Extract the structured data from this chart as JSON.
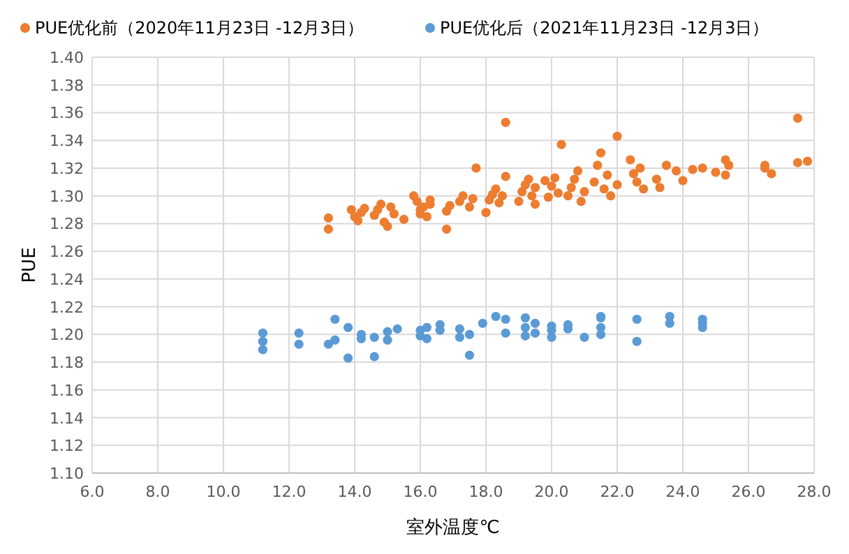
{
  "chart_data": {
    "type": "scatter",
    "xlabel": "室外温度℃",
    "ylabel": "PUE",
    "legend": "top",
    "grid": true,
    "marker": "circle",
    "xlim": [
      6,
      28
    ],
    "xticks": [
      {
        "value": 6,
        "label": "6.0"
      },
      {
        "value": 8,
        "label": "8.0"
      },
      {
        "value": 10,
        "label": "10.0"
      },
      {
        "value": 12,
        "label": "12.0"
      },
      {
        "value": 14,
        "label": "14.0"
      },
      {
        "value": 16,
        "label": "16.0"
      },
      {
        "value": 18,
        "label": "18.0"
      },
      {
        "value": 20,
        "label": "20.0"
      },
      {
        "value": 22,
        "label": "22.0"
      },
      {
        "value": 24,
        "label": "24.0"
      },
      {
        "value": 26,
        "label": "26.0"
      },
      {
        "value": 28,
        "label": "28.0"
      }
    ],
    "ylim": [
      1.1,
      1.4
    ],
    "yticks": [
      {
        "value": 1.1,
        "label": "1.10"
      },
      {
        "value": 1.12,
        "label": "1.12"
      },
      {
        "value": 1.14,
        "label": "1.14"
      },
      {
        "value": 1.16,
        "label": "1.16"
      },
      {
        "value": 1.18,
        "label": "1.18"
      },
      {
        "value": 1.2,
        "label": "1.20"
      },
      {
        "value": 1.22,
        "label": "1.22"
      },
      {
        "value": 1.24,
        "label": "1.24"
      },
      {
        "value": 1.26,
        "label": "1.26"
      },
      {
        "value": 1.28,
        "label": "1.28"
      },
      {
        "value": 1.3,
        "label": "1.30"
      },
      {
        "value": 1.32,
        "label": "1.32"
      },
      {
        "value": 1.34,
        "label": "1.34"
      },
      {
        "value": 1.36,
        "label": "1.36"
      },
      {
        "value": 1.38,
        "label": "1.38"
      },
      {
        "value": 1.4,
        "label": "1.40"
      }
    ],
    "series": [
      {
        "name": "PUE优化前（2020年11月23日 -12月3日）",
        "color": "#ed7d31",
        "x": [
          13.2,
          13.2,
          13.9,
          14.0,
          14.1,
          14.2,
          14.3,
          14.6,
          14.7,
          14.8,
          14.9,
          15.0,
          15.1,
          15.2,
          15.5,
          15.8,
          15.9,
          16.0,
          16.0,
          16.1,
          16.2,
          16.3,
          16.3,
          16.8,
          16.8,
          16.9,
          17.2,
          17.3,
          17.5,
          17.6,
          17.7,
          18.0,
          18.1,
          18.2,
          18.3,
          18.4,
          18.5,
          18.6,
          18.6,
          19.0,
          19.1,
          19.2,
          19.3,
          19.4,
          19.5,
          19.5,
          19.8,
          19.9,
          20.0,
          20.1,
          20.2,
          20.3,
          20.5,
          20.6,
          20.7,
          20.8,
          20.9,
          21.0,
          21.3,
          21.4,
          21.5,
          21.6,
          21.7,
          21.8,
          22.0,
          22.0,
          22.4,
          22.5,
          22.6,
          22.7,
          22.8,
          23.2,
          23.3,
          23.5,
          23.8,
          24.0,
          24.3,
          24.6,
          25.0,
          25.3,
          25.3,
          25.4,
          26.5,
          26.5,
          26.7,
          27.5,
          27.5,
          27.8
        ],
        "values": [
          1.284,
          1.276,
          1.29,
          1.285,
          1.282,
          1.288,
          1.291,
          1.286,
          1.29,
          1.294,
          1.281,
          1.278,
          1.292,
          1.287,
          1.283,
          1.3,
          1.296,
          1.29,
          1.287,
          1.292,
          1.285,
          1.294,
          1.297,
          1.276,
          1.289,
          1.293,
          1.296,
          1.3,
          1.292,
          1.298,
          1.32,
          1.288,
          1.297,
          1.301,
          1.305,
          1.295,
          1.3,
          1.353,
          1.314,
          1.296,
          1.303,
          1.308,
          1.312,
          1.3,
          1.294,
          1.306,
          1.311,
          1.299,
          1.307,
          1.313,
          1.302,
          1.337,
          1.3,
          1.306,
          1.312,
          1.318,
          1.296,
          1.303,
          1.31,
          1.322,
          1.331,
          1.305,
          1.315,
          1.3,
          1.343,
          1.308,
          1.326,
          1.316,
          1.31,
          1.32,
          1.305,
          1.312,
          1.306,
          1.322,
          1.318,
          1.311,
          1.319,
          1.32,
          1.317,
          1.326,
          1.315,
          1.322,
          1.322,
          1.32,
          1.316,
          1.356,
          1.324,
          1.325
        ]
      },
      {
        "name": "PUE优化后（2021年11月23日 -12月3日）",
        "color": "#5b9bd5",
        "x": [
          11.2,
          11.2,
          11.2,
          12.3,
          12.3,
          13.2,
          13.4,
          13.4,
          13.8,
          13.8,
          14.2,
          14.2,
          14.6,
          14.6,
          15.0,
          15.0,
          15.3,
          16.0,
          16.0,
          16.2,
          16.2,
          16.6,
          16.6,
          17.2,
          17.2,
          17.5,
          17.5,
          17.9,
          18.3,
          18.6,
          18.6,
          19.2,
          19.2,
          19.2,
          19.5,
          19.5,
          20.0,
          20.0,
          20.0,
          20.5,
          20.5,
          21.0,
          21.5,
          21.5,
          21.5,
          21.5,
          22.6,
          22.6,
          23.6,
          23.6,
          24.6,
          24.6,
          24.6
        ],
        "values": [
          1.201,
          1.195,
          1.189,
          1.193,
          1.201,
          1.193,
          1.211,
          1.196,
          1.183,
          1.205,
          1.197,
          1.2,
          1.184,
          1.198,
          1.202,
          1.196,
          1.204,
          1.203,
          1.199,
          1.205,
          1.197,
          1.207,
          1.203,
          1.204,
          1.198,
          1.185,
          1.2,
          1.208,
          1.213,
          1.211,
          1.201,
          1.199,
          1.212,
          1.205,
          1.201,
          1.208,
          1.206,
          1.198,
          1.203,
          1.204,
          1.207,
          1.198,
          1.212,
          1.205,
          1.2,
          1.213,
          1.211,
          1.195,
          1.213,
          1.208,
          1.211,
          1.205,
          1.208
        ]
      }
    ]
  }
}
